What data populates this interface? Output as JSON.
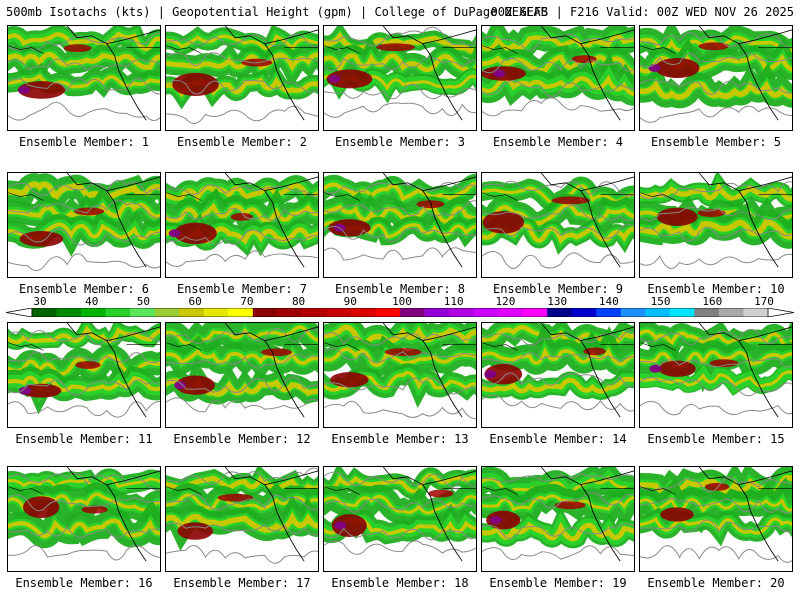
{
  "header": {
    "title": "500mb Isotachs (kts) | Geopotential Height (gpm) | College of DuPage NEXLAB",
    "run_info": "00Z GEFS | F216 Valid: 00Z WED NOV 26 2025"
  },
  "colorbar": {
    "tick_labels": [
      "30",
      "40",
      "50",
      "60",
      "70",
      "80",
      "90",
      "100",
      "110",
      "120",
      "130",
      "140",
      "150",
      "160",
      "170"
    ],
    "colors": [
      "#006400",
      "#008c00",
      "#00b400",
      "#2ad12a",
      "#5ce65c",
      "#9acd32",
      "#c8c800",
      "#e6e600",
      "#ffff00",
      "#8b0000",
      "#a00000",
      "#b40000",
      "#c80000",
      "#dc0000",
      "#ff0000",
      "#800080",
      "#9400d3",
      "#b000e0",
      "#cc00ff",
      "#e000ff",
      "#ff00ff",
      "#00008b",
      "#0000cd",
      "#0040ff",
      "#1e90ff",
      "#00bfff",
      "#00e5ff",
      "#808080",
      "#a9a9a9",
      "#d0d0d0"
    ]
  },
  "members": [
    {
      "label": "Ensemble Member: 1"
    },
    {
      "label": "Ensemble Member: 2"
    },
    {
      "label": "Ensemble Member: 3"
    },
    {
      "label": "Ensemble Member: 4"
    },
    {
      "label": "Ensemble Member: 5"
    },
    {
      "label": "Ensemble Member: 6"
    },
    {
      "label": "Ensemble Member: 7"
    },
    {
      "label": "Ensemble Member: 8"
    },
    {
      "label": "Ensemble Member: 9"
    },
    {
      "label": "Ensemble Member: 10"
    },
    {
      "label": "Ensemble Member: 11"
    },
    {
      "label": "Ensemble Member: 12"
    },
    {
      "label": "Ensemble Member: 13"
    },
    {
      "label": "Ensemble Member: 14"
    },
    {
      "label": "Ensemble Member: 15"
    },
    {
      "label": "Ensemble Member: 16"
    },
    {
      "label": "Ensemble Member: 17"
    },
    {
      "label": "Ensemble Member: 18"
    },
    {
      "label": "Ensemble Member: 19"
    },
    {
      "label": "Ensemble Member: 20"
    }
  ]
}
